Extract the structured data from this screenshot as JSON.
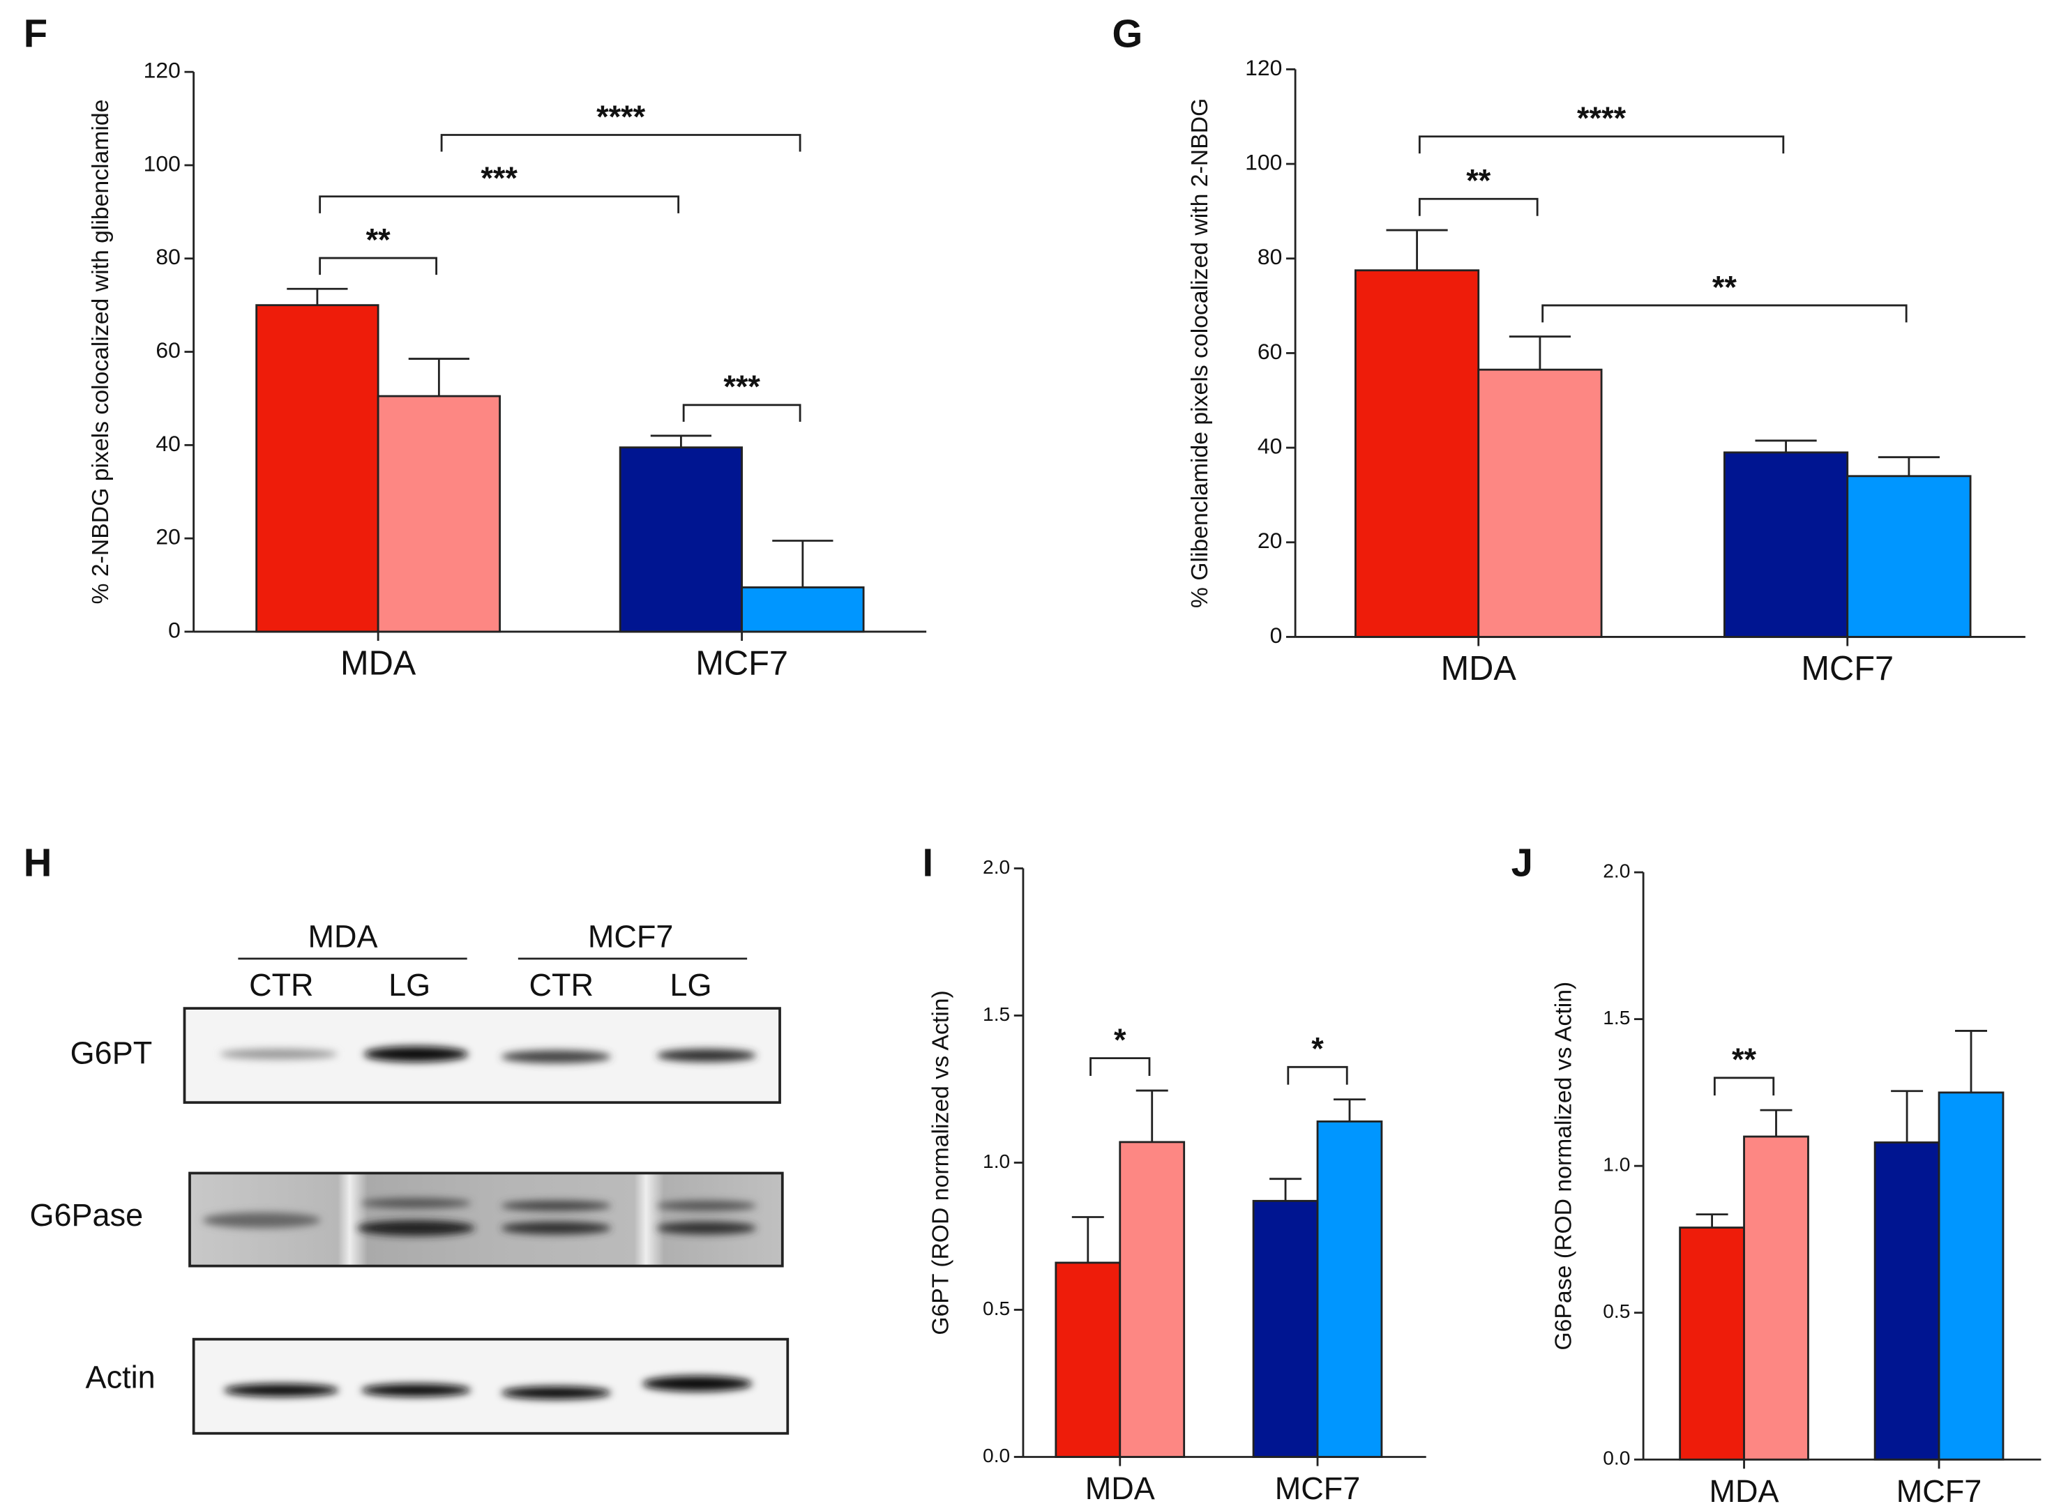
{
  "chart_data": [
    {
      "type": "bar",
      "panel": "F",
      "ylabel": "% 2-NBDG pixels colocalized with glibenclamide",
      "categories": [
        "MDA",
        "MCF7"
      ],
      "series": [
        {
          "colors": [
            "#ee1c0a",
            "#001591"
          ],
          "values": [
            70,
            39.5
          ],
          "errors": [
            3.5,
            2.5
          ]
        },
        {
          "colors": [
            "#fd8783",
            "#0096ff"
          ],
          "values": [
            50.5,
            9.5
          ],
          "errors": [
            8,
            10
          ]
        }
      ],
      "ylim": [
        0,
        120
      ],
      "yticks": [
        0,
        20,
        40,
        60,
        80,
        100,
        120
      ],
      "brackets": [
        {
          "label": "**",
          "from": [
            0,
            0
          ],
          "to": [
            0,
            1
          ]
        },
        {
          "label": "***",
          "from": [
            1,
            0
          ],
          "to": [
            1,
            1
          ]
        },
        {
          "label": "***",
          "from": [
            0,
            0
          ],
          "to": [
            1,
            0
          ]
        },
        {
          "label": "****",
          "from": [
            0,
            1
          ],
          "to": [
            1,
            1
          ]
        }
      ]
    },
    {
      "type": "bar",
      "panel": "G",
      "ylabel": "% Glibenclamide pixels colocalized with 2-NBDG",
      "categories": [
        "MDA",
        "MCF7"
      ],
      "series": [
        {
          "colors": [
            "#ee1c0a",
            "#001591"
          ],
          "values": [
            77.5,
            39
          ],
          "errors": [
            8.5,
            2.5
          ]
        },
        {
          "colors": [
            "#fd8783",
            "#0096ff"
          ],
          "values": [
            56.5,
            34
          ],
          "errors": [
            7,
            4
          ]
        }
      ],
      "ylim": [
        0,
        120
      ],
      "yticks": [
        0,
        20,
        40,
        60,
        80,
        100,
        120
      ],
      "brackets": [
        {
          "label": "**",
          "from": [
            0,
            0
          ],
          "to": [
            0,
            1
          ]
        },
        {
          "label": "**",
          "from": [
            0,
            1
          ],
          "to": [
            1,
            1
          ]
        },
        {
          "label": "****",
          "from": [
            0,
            0
          ],
          "to": [
            1,
            0
          ]
        }
      ]
    },
    {
      "type": "bar",
      "panel": "I",
      "ylabel": "G6PT (ROD normalized vs Actin)",
      "categories": [
        "MDA",
        "MCF7"
      ],
      "series": [
        {
          "colors": [
            "#ee1c0a",
            "#001591"
          ],
          "values": [
            0.66,
            0.87
          ],
          "errors": [
            0.155,
            0.075
          ]
        },
        {
          "colors": [
            "#fd8783",
            "#0096ff"
          ],
          "values": [
            1.07,
            1.14
          ],
          "errors": [
            0.175,
            0.075
          ]
        }
      ],
      "ylim": [
        0,
        2
      ],
      "yticks": [
        {
          "value": 0,
          "label": "0.0"
        },
        {
          "value": 0.5,
          "label": "0.5"
        },
        {
          "value": 1,
          "label": "1.0"
        },
        {
          "value": 1.5,
          "label": "1.5"
        },
        {
          "value": 2,
          "label": "2.0"
        }
      ],
      "brackets": [
        {
          "label": "*",
          "from": [
            0,
            0
          ],
          "to": [
            0,
            1
          ]
        },
        {
          "label": "*",
          "from": [
            1,
            0
          ],
          "to": [
            1,
            1
          ]
        }
      ]
    },
    {
      "type": "bar",
      "panel": "J",
      "ylabel": "G6Pase (ROD normalized vs Actin)",
      "categories": [
        "MDA",
        "MCF7"
      ],
      "series": [
        {
          "colors": [
            "#ee1c0a",
            "#001591"
          ],
          "values": [
            0.79,
            1.08
          ],
          "errors": [
            0.045,
            0.175
          ]
        },
        {
          "colors": [
            "#fd8783",
            "#0096ff"
          ],
          "values": [
            1.1,
            1.25
          ],
          "errors": [
            0.09,
            0.21
          ]
        }
      ],
      "ylim": [
        0,
        2
      ],
      "yticks": [
        {
          "value": 0,
          "label": "0.0"
        },
        {
          "value": 0.5,
          "label": "0.5"
        },
        {
          "value": 1,
          "label": "1.0"
        },
        {
          "value": 1.5,
          "label": "1.5"
        },
        {
          "value": 2,
          "label": "2.0"
        }
      ],
      "brackets": [
        {
          "label": "**",
          "from": [
            0,
            0
          ],
          "to": [
            0,
            1
          ]
        }
      ]
    }
  ],
  "blot": {
    "panel": "H",
    "groups": [
      "MDA",
      "MCF7"
    ],
    "lanes": [
      "CTR",
      "LG",
      "CTR",
      "LG"
    ],
    "rows": [
      "G6PT",
      "G6Pase",
      "Actin"
    ]
  }
}
